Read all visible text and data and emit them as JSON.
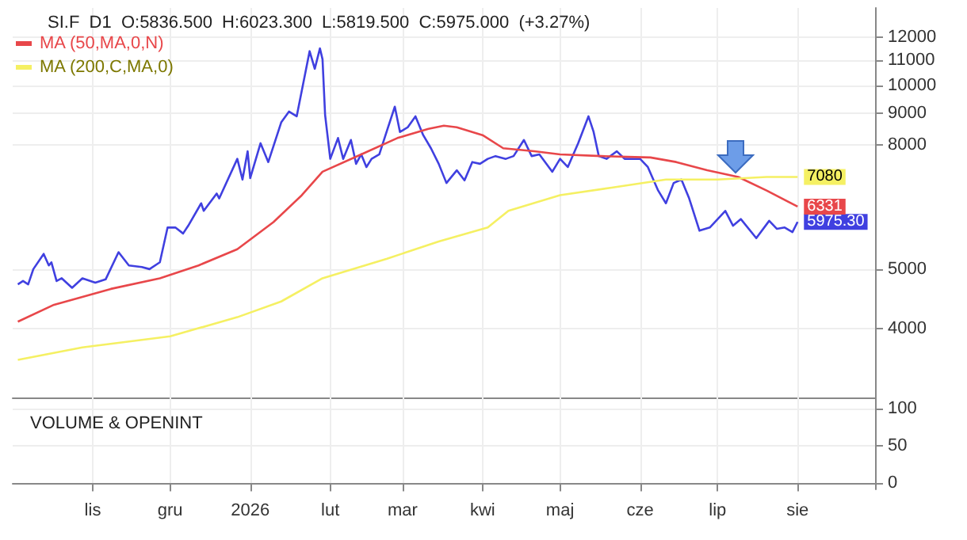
{
  "chart_data": [
    {
      "type": "line",
      "title": "SI.F  D1  O:5836.500  H:6023.300  L:5819.500  C:5975.000  (+3.27%)",
      "series": [
        {
          "color": "#4040e0",
          "x": [
            "2025-10-03",
            "2025-10-05",
            "2025-10-07",
            "2025-10-09",
            "2025-10-13",
            "2025-10-15",
            "2025-10-16",
            "2025-10-18",
            "2025-10-20",
            "2025-10-24",
            "2025-10-28",
            "2025-11-02",
            "2025-11-06",
            "2025-11-11",
            "2025-11-15",
            "2025-11-20",
            "2025-11-23",
            "2025-11-27",
            "2025-11-30",
            "2025-12-03",
            "2025-12-06",
            "2025-12-08",
            "2025-12-13",
            "2025-12-14",
            "2025-12-19",
            "2025-12-20",
            "2025-12-27",
            "2025-12-29",
            "2025-12-31",
            "2026-01-01",
            "2026-01-05",
            "2026-01-08",
            "2026-01-13",
            "2026-01-16",
            "2026-01-19",
            "2026-01-24",
            "2026-01-26",
            "2026-01-28",
            "2026-01-29",
            "2026-01-30",
            "2026-02-01",
            "2026-02-04",
            "2026-02-06",
            "2026-02-09",
            "2026-02-11",
            "2026-02-13",
            "2026-02-15",
            "2026-02-17",
            "2026-02-20",
            "2026-02-23",
            "2026-02-26",
            "2026-02-28",
            "2026-03-03",
            "2026-03-06",
            "2026-03-09",
            "2026-03-12",
            "2026-03-15",
            "2026-03-18",
            "2026-03-22",
            "2026-03-25",
            "2026-03-28",
            "2026-03-31",
            "2026-04-03",
            "2026-04-06",
            "2026-04-10",
            "2026-04-13",
            "2026-04-17",
            "2026-04-20",
            "2026-04-23",
            "2026-04-28",
            "2026-05-01",
            "2026-05-04",
            "2026-05-08",
            "2026-05-12",
            "2026-05-14",
            "2026-05-16",
            "2026-05-19",
            "2026-05-23",
            "2026-05-26",
            "2026-06-01",
            "2026-06-04",
            "2026-06-08",
            "2026-06-11",
            "2026-06-14",
            "2026-06-17",
            "2026-06-20",
            "2026-06-24",
            "2026-06-28",
            "2026-07-04",
            "2026-07-07",
            "2026-07-10",
            "2026-07-16",
            "2026-07-21",
            "2026-07-24",
            "2026-07-27",
            "2026-07-30",
            "2026-08-01"
          ],
          "values": [
            4720,
            4780,
            4720,
            5000,
            5295,
            5070,
            5130,
            4780,
            4830,
            4660,
            4830,
            4750,
            4810,
            5330,
            5070,
            5040,
            5000,
            5130,
            5850,
            5850,
            5720,
            5890,
            6410,
            6230,
            6650,
            6530,
            7580,
            7010,
            7800,
            7050,
            8040,
            7490,
            8700,
            9060,
            8900,
            11380,
            10650,
            11500,
            11040,
            8950,
            7580,
            8200,
            7580,
            8140,
            7440,
            7710,
            7350,
            7580,
            7710,
            8440,
            9230,
            8390,
            8540,
            8900,
            8290,
            7890,
            7440,
            6920,
            7260,
            6990,
            7490,
            7440,
            7580,
            7660,
            7580,
            7660,
            8140,
            7660,
            7710,
            7220,
            7580,
            7350,
            8040,
            8900,
            8390,
            7660,
            7580,
            7800,
            7580,
            7580,
            7350,
            6725,
            6410,
            6920,
            7010,
            6530,
            5780,
            5850,
            6230,
            5890,
            6040,
            5620,
            6000,
            5820,
            5850,
            5750,
            5975.3
          ],
          "value_labels": [
            null,
            null,
            null,
            null,
            null,
            null,
            null,
            null,
            null,
            null,
            null,
            null,
            null,
            null,
            null,
            null,
            null,
            null,
            null,
            null,
            null,
            null,
            null,
            null,
            null,
            null,
            null,
            null,
            null,
            null,
            null,
            null,
            null,
            null,
            null,
            null,
            null,
            null,
            null,
            null,
            null,
            null,
            null,
            null,
            null,
            null,
            null,
            null,
            null,
            null,
            null,
            null,
            null,
            null,
            null,
            null,
            null,
            null,
            null,
            null,
            null,
            null,
            null,
            null,
            null,
            null,
            null,
            null,
            null,
            null,
            null,
            null,
            null,
            null,
            null,
            null,
            null,
            null,
            null,
            null,
            null,
            null,
            null,
            null,
            null,
            null,
            null,
            null,
            null,
            null,
            null,
            null,
            null,
            null,
            null,
            null,
            "5975.30"
          ]
        },
        {
          "name": "MA (50,MA,0,N)",
          "color": "#e8474a",
          "x": [
            "2025-10-03",
            "2025-10-17",
            "2025-11-08",
            "2025-11-27",
            "2025-12-12",
            "2025-12-27",
            "2026-01-10",
            "2026-01-21",
            "2026-01-29",
            "2026-02-13",
            "2026-02-27",
            "2026-03-11",
            "2026-03-17",
            "2026-03-22",
            "2026-04-01",
            "2026-04-09",
            "2026-04-21",
            "2026-05-01",
            "2026-05-17",
            "2026-06-05",
            "2026-06-15",
            "2026-06-27",
            "2026-07-09",
            "2026-07-20",
            "2026-08-01"
          ],
          "values": [
            4100,
            4370,
            4640,
            4830,
            5070,
            5390,
            5970,
            6610,
            7220,
            7710,
            8200,
            8490,
            8590,
            8540,
            8290,
            7890,
            7800,
            7710,
            7660,
            7620,
            7490,
            7260,
            7080,
            6725,
            6331
          ],
          "value_labels": [
            null,
            null,
            null,
            null,
            null,
            null,
            null,
            null,
            null,
            null,
            null,
            null,
            null,
            null,
            null,
            null,
            null,
            null,
            null,
            null,
            null,
            null,
            null,
            null,
            "6331"
          ]
        },
        {
          "name": "MA (200,C,MA,0)",
          "color": "#f5f063",
          "x": [
            "2025-10-03",
            "2025-10-28",
            "2025-12-01",
            "2025-12-27",
            "2026-01-13",
            "2026-01-29",
            "2026-02-23",
            "2026-03-15",
            "2026-04-03",
            "2026-04-11",
            "2026-05-01",
            "2026-05-21",
            "2026-06-11",
            "2026-07-01",
            "2026-07-20",
            "2026-08-01"
          ],
          "values": [
            3550,
            3720,
            3880,
            4170,
            4425,
            4830,
            5200,
            5550,
            5850,
            6230,
            6610,
            6800,
            7010,
            7010,
            7080,
            7080
          ],
          "value_labels": [
            null,
            null,
            null,
            null,
            null,
            null,
            null,
            null,
            null,
            null,
            null,
            null,
            null,
            null,
            null,
            "7080"
          ]
        }
      ],
      "xlim": [
        "2025-10-01",
        "2026-08-31"
      ],
      "xticks": [
        {
          "value": "2025-11-01",
          "label": null
        },
        {
          "value": "2025-12-01",
          "label": null
        },
        {
          "value": "2026-01-01",
          "label": null
        },
        {
          "value": "2026-02-01",
          "label": null
        },
        {
          "value": "2026-03-01",
          "label": null
        },
        {
          "value": "2026-04-01",
          "label": null
        },
        {
          "value": "2026-05-01",
          "label": null
        },
        {
          "value": "2026-06-01",
          "label": null
        },
        {
          "value": "2026-07-01",
          "label": null
        },
        {
          "value": "2026-08-01",
          "label": null
        }
      ],
      "ylim": [
        3080,
        13400
      ],
      "yticks": [
        4000,
        5000,
        8000,
        9000,
        10000,
        11000,
        12000
      ],
      "log": "y",
      "grid": true,
      "legend": "top left",
      "tick_labels": "y"
    },
    {
      "type": "line",
      "title": "VOLUME & OPENINT",
      "xlim": [
        "2025-10-01",
        "2026-08-31"
      ],
      "xticks": [
        {
          "value": "2025-11-01",
          "label": "lis"
        },
        {
          "value": "2025-12-01",
          "label": "gru"
        },
        {
          "value": "2026-01-01",
          "label": "2026"
        },
        {
          "value": "2026-02-01",
          "label": "lut"
        },
        {
          "value": "2026-03-01",
          "label": "mar"
        },
        {
          "value": "2026-04-01",
          "label": "kwi"
        },
        {
          "value": "2026-05-01",
          "label": "maj"
        },
        {
          "value": "2026-06-01",
          "label": "cze"
        },
        {
          "value": "2026-07-01",
          "label": "lip"
        },
        {
          "value": "2026-08-01",
          "label": "sie"
        }
      ],
      "ylim": [
        -8,
        115
      ],
      "yticks": [
        0,
        50,
        100
      ],
      "grid": true
    }
  ]
}
